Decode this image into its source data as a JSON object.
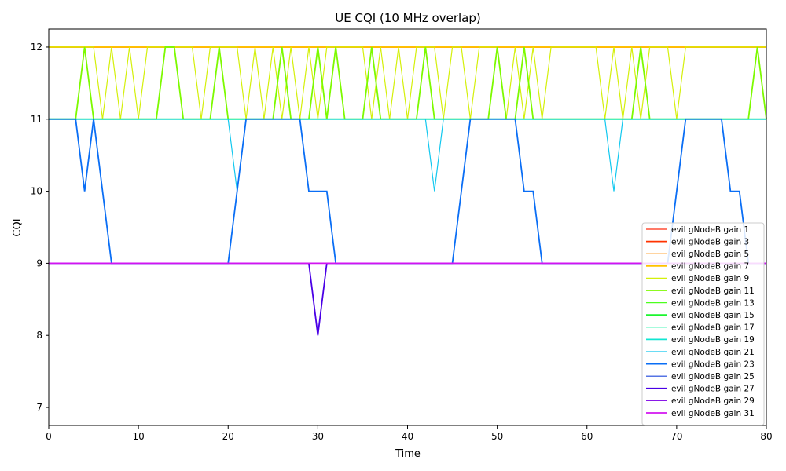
{
  "chart_data": {
    "type": "line",
    "title": "UE CQI (10 MHz overlap)",
    "xlabel": "Time",
    "ylabel": "CQI",
    "xlim": [
      0,
      80
    ],
    "ylim": [
      6.75,
      12.25
    ],
    "xticks": [
      0,
      10,
      20,
      30,
      40,
      50,
      60,
      70,
      80
    ],
    "yticks": [
      7,
      8,
      9,
      10,
      11,
      12
    ],
    "grid": false,
    "legend_position": "lower-right",
    "series": [
      {
        "name": "evil gNodeB gain 1",
        "color": "#ff2a0f",
        "width": 1.2,
        "x": [
          0,
          80
        ],
        "y": [
          12,
          12
        ]
      },
      {
        "name": "evil gNodeB gain 3",
        "color": "#ff3300",
        "width": 1.8,
        "x": [
          0,
          80
        ],
        "y": [
          12,
          12
        ]
      },
      {
        "name": "evil gNodeB gain 5",
        "color": "#ff8c00",
        "width": 1.2,
        "x": [
          0,
          80
        ],
        "y": [
          12,
          12
        ]
      },
      {
        "name": "evil gNodeB gain 7",
        "color": "#ffc300",
        "width": 1.8,
        "x": [
          0,
          80
        ],
        "y": [
          12,
          12
        ]
      },
      {
        "name": "evil gNodeB gain 9",
        "color": "#d4f00a",
        "width": 1.2,
        "x": [
          0,
          4,
          5,
          6,
          7,
          8,
          9,
          10,
          11,
          12,
          15,
          16,
          17,
          18,
          19,
          20,
          21,
          22,
          23,
          24,
          25,
          26,
          27,
          28,
          29,
          30,
          31,
          32,
          35,
          36,
          37,
          38,
          39,
          40,
          41,
          42,
          43,
          44,
          45,
          46,
          47,
          48,
          49,
          50,
          51,
          52,
          53,
          54,
          55,
          56,
          60,
          61,
          62,
          63,
          64,
          65,
          66,
          67,
          68,
          69,
          70,
          71,
          80
        ],
        "y": [
          12,
          12,
          12,
          11,
          12,
          11,
          12,
          11,
          12,
          12,
          12,
          12,
          11,
          12,
          12,
          12,
          12,
          11,
          12,
          11,
          12,
          11,
          12,
          11,
          12,
          11,
          12,
          12,
          12,
          11,
          12,
          11,
          12,
          11,
          12,
          12,
          12,
          11,
          12,
          12,
          11,
          12,
          12,
          12,
          11,
          12,
          11,
          12,
          11,
          12,
          12,
          12,
          11,
          12,
          11,
          12,
          11,
          12,
          12,
          12,
          11,
          12,
          12
        ]
      },
      {
        "name": "evil gNodeB gain 11",
        "color": "#7dfa00",
        "width": 1.8,
        "x": [
          0,
          3,
          4,
          5,
          11,
          12,
          13,
          14,
          15,
          17,
          18,
          19,
          20,
          24,
          25,
          26,
          27,
          29,
          30,
          31,
          32,
          33,
          35,
          36,
          37,
          41,
          42,
          43,
          49,
          50,
          51,
          52,
          53,
          54,
          65,
          66,
          67,
          78,
          79,
          80
        ],
        "y": [
          11,
          11,
          12,
          11,
          11,
          11,
          12,
          12,
          11,
          11,
          11,
          12,
          11,
          11,
          11,
          12,
          11,
          11,
          12,
          11,
          12,
          11,
          11,
          12,
          11,
          11,
          12,
          11,
          11,
          12,
          11,
          11,
          12,
          11,
          11,
          12,
          11,
          11,
          12,
          11
        ]
      },
      {
        "name": "evil gNodeB gain 13",
        "color": "#4cff1e",
        "width": 1.2,
        "x": [
          0,
          80
        ],
        "y": [
          11,
          11
        ]
      },
      {
        "name": "evil gNodeB gain 15",
        "color": "#1cf52e",
        "width": 1.8,
        "x": [
          0,
          80
        ],
        "y": [
          11,
          11
        ]
      },
      {
        "name": "evil gNodeB gain 17",
        "color": "#10f5a0",
        "width": 1.2,
        "x": [
          0,
          80
        ],
        "y": [
          11,
          11
        ]
      },
      {
        "name": "evil gNodeB gain 19",
        "color": "#10e6d2",
        "width": 1.8,
        "x": [
          0,
          80
        ],
        "y": [
          11,
          11
        ]
      },
      {
        "name": "evil gNodeB gain 21",
        "color": "#12c8ef",
        "width": 1.2,
        "x": [
          0,
          20,
          21,
          22,
          42,
          43,
          44,
          62,
          63,
          64,
          80
        ],
        "y": [
          11,
          11,
          10,
          11,
          11,
          10,
          11,
          11,
          10,
          11,
          11
        ]
      },
      {
        "name": "evil gNodeB gain 23",
        "color": "#0a6ef5",
        "width": 1.8,
        "x": [
          0,
          3,
          4,
          5,
          7,
          20,
          22,
          28,
          29,
          31,
          32,
          45,
          47,
          52,
          53,
          54,
          55,
          69,
          71,
          75,
          76,
          77,
          78,
          80
        ],
        "y": [
          11,
          11,
          10,
          11,
          9,
          9,
          11,
          11,
          10,
          10,
          9,
          9,
          11,
          11,
          10,
          10,
          9,
          9,
          11,
          11,
          10,
          10,
          9,
          9
        ]
      },
      {
        "name": "evil gNodeB gain 25",
        "color": "#1e46dc",
        "width": 1.2,
        "x": [
          0,
          80
        ],
        "y": [
          9,
          9
        ]
      },
      {
        "name": "evil gNodeB gain 27",
        "color": "#4a00e6",
        "width": 1.8,
        "x": [
          0,
          29,
          30,
          31,
          80
        ],
        "y": [
          9,
          9,
          8,
          9,
          9
        ]
      },
      {
        "name": "evil gNodeB gain 29",
        "color": "#8a18e8",
        "width": 1.2,
        "x": [
          0,
          80
        ],
        "y": [
          9,
          9
        ]
      },
      {
        "name": "evil gNodeB gain 31",
        "color": "#d214f0",
        "width": 1.8,
        "x": [
          0,
          80
        ],
        "y": [
          9,
          9
        ]
      }
    ]
  }
}
